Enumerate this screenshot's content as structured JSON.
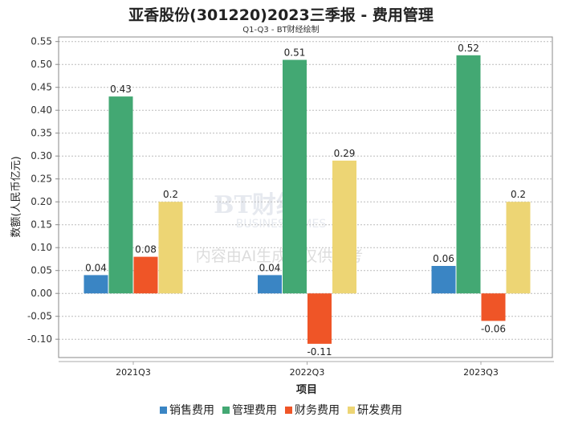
{
  "chart_data": {
    "type": "bar",
    "title": "亚香股份(301220)2023三季报 - 费用管理",
    "subtitle": "Q1-Q3 - BT财经绘制",
    "xlabel": "项目",
    "ylabel": "数额(人民币亿元)",
    "categories": [
      "2021Q3",
      "2022Q3",
      "2023Q3"
    ],
    "series": [
      {
        "name": "销售费用",
        "color": "#3a85c4",
        "values": [
          0.04,
          0.04,
          0.06
        ],
        "labels": [
          "0.04",
          "0.04",
          "0.06"
        ]
      },
      {
        "name": "管理费用",
        "color": "#43a873",
        "values": [
          0.43,
          0.51,
          0.52
        ],
        "labels": [
          "0.43",
          "0.51",
          "0.52"
        ]
      },
      {
        "name": "财务费用",
        "color": "#ef5527",
        "values": [
          0.08,
          -0.11,
          -0.06
        ],
        "labels": [
          "0.08",
          "-0.11",
          "-0.06"
        ]
      },
      {
        "name": "研发费用",
        "color": "#edd574",
        "values": [
          0.2,
          0.29,
          0.2
        ],
        "labels": [
          "0.2",
          "0.29",
          "0.2"
        ]
      }
    ],
    "yticks": [
      "0.55",
      "0.50",
      "0.45",
      "0.40",
      "0.35",
      "0.30",
      "0.25",
      "0.20",
      "0.15",
      "0.10",
      "0.05",
      "0.00",
      "-0.05",
      "-0.10"
    ],
    "ylim": [
      -0.14,
      0.56
    ],
    "grid": true,
    "legend": "bottom"
  },
  "watermark": {
    "brand": "BT财经",
    "brand_en": "BUSINESSTIMES",
    "notice": "内容由AI生成，仅供参考"
  }
}
